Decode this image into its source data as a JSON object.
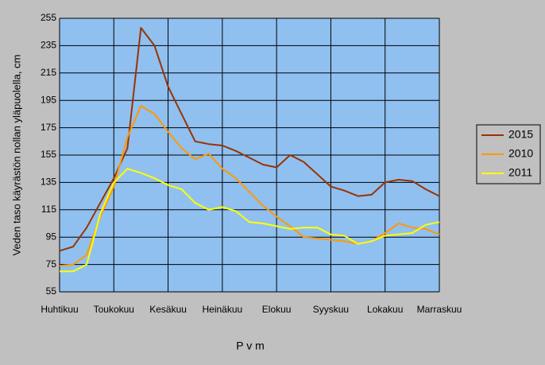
{
  "chart_data": {
    "type": "line",
    "ylabel": "Veden taso käyrästön nollan yläpuolella, cm",
    "xlabel": "P v m",
    "categories": [
      "Huhtikuu",
      null,
      null,
      null,
      "Toukokuu",
      null,
      null,
      null,
      "Kesäkuu",
      null,
      null,
      null,
      "Heinäkuu",
      null,
      null,
      null,
      "Elokuu",
      null,
      null,
      null,
      "Syyskuu",
      null,
      null,
      null,
      "Lokakuu",
      null,
      null,
      null,
      "Marraskuu"
    ],
    "ylim": [
      55,
      255
    ],
    "yticks": [
      55,
      75,
      95,
      115,
      135,
      155,
      175,
      195,
      215,
      235,
      255
    ],
    "grid": true,
    "legend": "right",
    "plot_color": "#90c0f0",
    "series": [
      {
        "name": "2015",
        "color": "#993300",
        "values": [
          85,
          88,
          102,
          120,
          138,
          160,
          248,
          235,
          205,
          185,
          165,
          163,
          162,
          158,
          153,
          148,
          146,
          155,
          150,
          141,
          132,
          129,
          125,
          126,
          135,
          137,
          136,
          130,
          125
        ]
      },
      {
        "name": "2010",
        "color": "#ff9900",
        "values": [
          74,
          75,
          82,
          110,
          132,
          168,
          191,
          185,
          172,
          160,
          152,
          156,
          145,
          138,
          128,
          118,
          110,
          103,
          95,
          94,
          93,
          92,
          90,
          92,
          98,
          105,
          102,
          101,
          97
        ]
      },
      {
        "name": "2011",
        "color": "#ffff00",
        "values": [
          70,
          70,
          75,
          112,
          135,
          145,
          142,
          138,
          133,
          130,
          120,
          115,
          117,
          114,
          106,
          105,
          103,
          101,
          102,
          102,
          97,
          96,
          90,
          92,
          96,
          97,
          98,
          104,
          106
        ]
      }
    ]
  }
}
